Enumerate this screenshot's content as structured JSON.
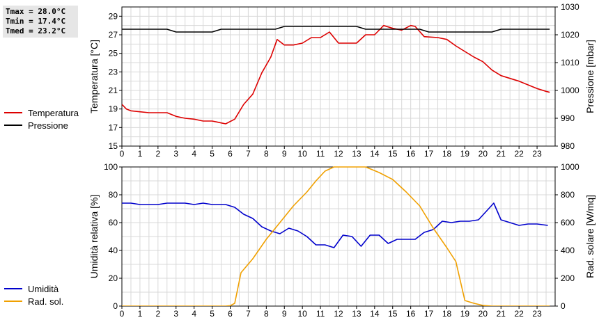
{
  "stats": {
    "tmax": "Tmax = 28.0°C",
    "tmin": "Tmin = 17.4°C",
    "tmed": "Tmed = 23.2°C"
  },
  "legend_top": [
    {
      "label": "Temperatura",
      "color": "#dd0000"
    },
    {
      "label": "Pressione",
      "color": "#000000"
    }
  ],
  "legend_bottom": [
    {
      "label": "Umidità",
      "color": "#0000cc"
    },
    {
      "label": "Rad. sol.",
      "color": "#f0a000"
    }
  ],
  "chart_data": [
    {
      "type": "line",
      "xlim": [
        0,
        24
      ],
      "xticks": [
        0,
        1,
        2,
        3,
        4,
        5,
        6,
        7,
        8,
        9,
        10,
        11,
        12,
        13,
        14,
        15,
        16,
        17,
        18,
        19,
        20,
        21,
        22,
        23
      ],
      "ylabel": "Temperatura [°C]",
      "ylim": [
        15,
        30
      ],
      "yticks": [
        15,
        17,
        19,
        21,
        23,
        25,
        27,
        29
      ],
      "y2label": "Pressione [mbar]",
      "y2lim": [
        980,
        1030
      ],
      "y2ticks": [
        980,
        990,
        1000,
        1010,
        1020,
        1030
      ],
      "grid": true,
      "series": [
        {
          "name": "Temperatura",
          "color": "#dd0000",
          "axis": "left",
          "points": [
            [
              0,
              19.5
            ],
            [
              0.25,
              19.0
            ],
            [
              0.5,
              18.8
            ],
            [
              1,
              18.7
            ],
            [
              1.5,
              18.6
            ],
            [
              2,
              18.6
            ],
            [
              2.5,
              18.6
            ],
            [
              3,
              18.2
            ],
            [
              3.5,
              18.0
            ],
            [
              4,
              17.9
            ],
            [
              4.5,
              17.7
            ],
            [
              5,
              17.7
            ],
            [
              5.25,
              17.6
            ],
            [
              5.5,
              17.5
            ],
            [
              5.75,
              17.4
            ],
            [
              6.25,
              17.9
            ],
            [
              6.75,
              19.5
            ],
            [
              7.25,
              20.6
            ],
            [
              7.75,
              22.9
            ],
            [
              8.25,
              24.6
            ],
            [
              8.6,
              26.5
            ],
            [
              9.0,
              25.9
            ],
            [
              9.5,
              25.9
            ],
            [
              10,
              26.1
            ],
            [
              10.5,
              26.7
            ],
            [
              11,
              26.7
            ],
            [
              11.5,
              27.3
            ],
            [
              12,
              26.1
            ],
            [
              12.5,
              26.1
            ],
            [
              13,
              26.1
            ],
            [
              13.5,
              27.0
            ],
            [
              14,
              27.0
            ],
            [
              14.5,
              28.0
            ],
            [
              15,
              27.7
            ],
            [
              15.5,
              27.5
            ],
            [
              16,
              28.0
            ],
            [
              16.25,
              27.9
            ],
            [
              16.75,
              26.8
            ],
            [
              17.5,
              26.7
            ],
            [
              18,
              26.5
            ],
            [
              18.5,
              25.8
            ],
            [
              19,
              25.2
            ],
            [
              19.5,
              24.6
            ],
            [
              20,
              24.1
            ],
            [
              20.5,
              23.2
            ],
            [
              21,
              22.6
            ],
            [
              21.5,
              22.3
            ],
            [
              22,
              22.0
            ],
            [
              22.5,
              21.6
            ],
            [
              23,
              21.2
            ],
            [
              23.5,
              20.9
            ],
            [
              23.7,
              20.8
            ]
          ]
        },
        {
          "name": "Pressione",
          "color": "#000000",
          "axis": "right",
          "points": [
            [
              0,
              1022
            ],
            [
              2.5,
              1022
            ],
            [
              3,
              1021
            ],
            [
              5,
              1021
            ],
            [
              5.5,
              1022
            ],
            [
              8.5,
              1022
            ],
            [
              9,
              1023
            ],
            [
              13,
              1023
            ],
            [
              13.5,
              1022
            ],
            [
              16.5,
              1022
            ],
            [
              17,
              1021
            ],
            [
              20.5,
              1021
            ],
            [
              21,
              1022
            ],
            [
              23.7,
              1022
            ]
          ]
        }
      ]
    },
    {
      "type": "line",
      "xlim": [
        0,
        24
      ],
      "xticks": [
        0,
        1,
        2,
        3,
        4,
        5,
        6,
        7,
        8,
        9,
        10,
        11,
        12,
        13,
        14,
        15,
        16,
        17,
        18,
        19,
        20,
        21,
        22,
        23
      ],
      "ylabel": "Umidità relativa [%]",
      "ylim": [
        0,
        100
      ],
      "yticks": [
        0,
        20,
        40,
        60,
        80,
        100
      ],
      "y2label": "Rad. solare [W/mq]",
      "y2lim": [
        0,
        1000
      ],
      "y2ticks": [
        0,
        200,
        400,
        600,
        800,
        1000
      ],
      "grid": true,
      "series": [
        {
          "name": "Umidità",
          "color": "#0000cc",
          "axis": "left",
          "points": [
            [
              0,
              74
            ],
            [
              0.5,
              74
            ],
            [
              1,
              73
            ],
            [
              2,
              73
            ],
            [
              2.5,
              74
            ],
            [
              3.5,
              74
            ],
            [
              4,
              73
            ],
            [
              4.5,
              74
            ],
            [
              5,
              73
            ],
            [
              5.75,
              73
            ],
            [
              6.25,
              71
            ],
            [
              6.75,
              66
            ],
            [
              7.25,
              63
            ],
            [
              7.75,
              57
            ],
            [
              8.25,
              54
            ],
            [
              8.75,
              52
            ],
            [
              9.25,
              56
            ],
            [
              9.75,
              54
            ],
            [
              10.25,
              50
            ],
            [
              10.75,
              44
            ],
            [
              11.25,
              44
            ],
            [
              11.75,
              42
            ],
            [
              12.25,
              51
            ],
            [
              12.75,
              50
            ],
            [
              13.25,
              43
            ],
            [
              13.75,
              51
            ],
            [
              14.25,
              51
            ],
            [
              14.75,
              45
            ],
            [
              15.25,
              48
            ],
            [
              15.75,
              48
            ],
            [
              16.25,
              48
            ],
            [
              16.75,
              53
            ],
            [
              17.25,
              55
            ],
            [
              17.75,
              61
            ],
            [
              18.25,
              60
            ],
            [
              18.75,
              61
            ],
            [
              19.25,
              61
            ],
            [
              19.75,
              62
            ],
            [
              20.25,
              69
            ],
            [
              20.6,
              74
            ],
            [
              21,
              62
            ],
            [
              21.5,
              60
            ],
            [
              22,
              58
            ],
            [
              22.5,
              59
            ],
            [
              23,
              59
            ],
            [
              23.6,
              58
            ]
          ]
        },
        {
          "name": "Rad. sol.",
          "color": "#f0a000",
          "axis": "right",
          "points": [
            [
              0,
              0
            ],
            [
              5.75,
              0
            ],
            [
              6.0,
              3
            ],
            [
              6.25,
              20
            ],
            [
              6.6,
              240
            ],
            [
              7.25,
              340
            ],
            [
              8,
              480
            ],
            [
              8.75,
              600
            ],
            [
              9.5,
              720
            ],
            [
              10.25,
              820
            ],
            [
              10.75,
              900
            ],
            [
              11.25,
              970
            ],
            [
              11.75,
              1000
            ],
            [
              12.25,
              1000
            ],
            [
              13,
              1000
            ],
            [
              13.5,
              1000
            ],
            [
              14.25,
              960
            ],
            [
              15,
              910
            ],
            [
              15.75,
              820
            ],
            [
              16.5,
              720
            ],
            [
              17.25,
              560
            ],
            [
              18,
              420
            ],
            [
              18.5,
              320
            ],
            [
              19,
              40
            ],
            [
              19.5,
              20
            ],
            [
              20,
              5
            ],
            [
              20.5,
              0
            ],
            [
              23.7,
              0
            ]
          ]
        }
      ]
    }
  ]
}
